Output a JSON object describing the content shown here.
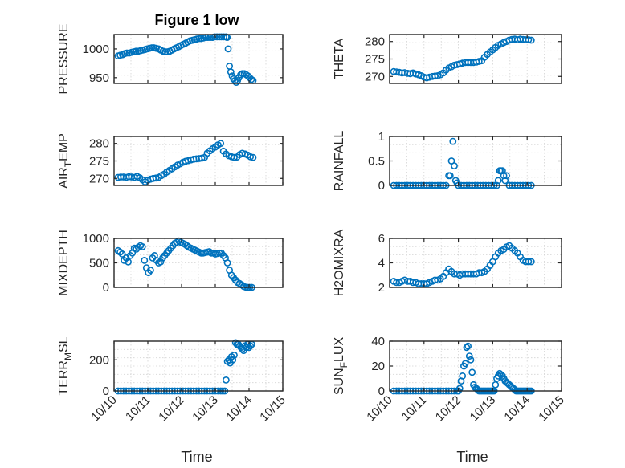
{
  "figure": {
    "title": "Figure 1 low",
    "x_label": "Time"
  },
  "colors": {
    "marker": "#0072BD",
    "axes": "#262626",
    "grid": "#d3d3d3"
  },
  "chart_data": [
    {
      "id": "pressure",
      "type": "scatter",
      "title": "Figure 1 low",
      "xlabel": "",
      "ylabel": [
        "PRESSURE"
      ],
      "marker": "circle-open",
      "xlim": [
        0,
        5
      ],
      "xticks": [
        0,
        1,
        2,
        3,
        4,
        5
      ],
      "xticklabels": [
        "10/10",
        "10/11",
        "10/12",
        "10/13",
        "10/14",
        "10/15"
      ],
      "show_xticklabels": false,
      "ylim": [
        940,
        1025
      ],
      "yticks": [
        950,
        1000
      ],
      "yticklabels": [
        "950",
        "1000"
      ],
      "x": [
        0.12,
        0.18,
        0.25,
        0.32,
        0.38,
        0.45,
        0.52,
        0.58,
        0.65,
        0.72,
        0.78,
        0.85,
        0.92,
        0.98,
        1.05,
        1.12,
        1.18,
        1.25,
        1.32,
        1.38,
        1.45,
        1.52,
        1.58,
        1.65,
        1.72,
        1.78,
        1.85,
        1.92,
        1.98,
        2.05,
        2.12,
        2.18,
        2.25,
        2.32,
        2.38,
        2.45,
        2.52,
        2.58,
        2.65,
        2.72,
        2.78,
        2.85,
        2.92,
        2.98,
        3.05,
        3.12,
        3.18,
        3.25,
        3.32,
        3.35,
        3.38,
        3.42,
        3.46,
        3.5,
        3.54,
        3.58,
        3.62,
        3.66,
        3.7,
        3.75,
        3.8,
        3.86,
        3.92,
        3.97,
        4.02,
        4.07,
        4.12
      ],
      "y": [
        988,
        989,
        990,
        992,
        993,
        993,
        994,
        995,
        996,
        996,
        997,
        998,
        999,
        1000,
        1001,
        1002,
        1002,
        1001,
        1000,
        998,
        996,
        995,
        995,
        996,
        998,
        1000,
        1002,
        1004,
        1006,
        1008,
        1010,
        1012,
        1014,
        1015,
        1016,
        1017,
        1018,
        1018,
        1019,
        1020,
        1020,
        1020,
        1020,
        1021,
        1021,
        1021,
        1021,
        1021,
        1021,
        1020,
        1000,
        970,
        960,
        953,
        948,
        945,
        942,
        945,
        950,
        955,
        957,
        957,
        955,
        953,
        950,
        947,
        945
      ]
    },
    {
      "id": "theta",
      "type": "scatter",
      "xlabel": "",
      "ylabel": [
        "THETA"
      ],
      "marker": "circle-open",
      "xlim": [
        0,
        5
      ],
      "xticks": [
        0,
        1,
        2,
        3,
        4,
        5
      ],
      "xticklabels": [
        "10/10",
        "10/11",
        "10/12",
        "10/13",
        "10/14",
        "10/15"
      ],
      "show_xticklabels": false,
      "ylim": [
        268,
        282
      ],
      "yticks": [
        270,
        275,
        280
      ],
      "yticklabels": [
        "270",
        "275",
        "280"
      ],
      "x": [
        0.12,
        0.2,
        0.28,
        0.36,
        0.44,
        0.52,
        0.6,
        0.68,
        0.76,
        0.84,
        0.92,
        1.0,
        1.08,
        1.16,
        1.24,
        1.32,
        1.4,
        1.48,
        1.56,
        1.64,
        1.72,
        1.8,
        1.88,
        1.96,
        2.04,
        2.12,
        2.2,
        2.28,
        2.36,
        2.44,
        2.52,
        2.6,
        2.68,
        2.76,
        2.84,
        2.92,
        3.0,
        3.08,
        3.16,
        3.24,
        3.32,
        3.4,
        3.48,
        3.56,
        3.64,
        3.72,
        3.8,
        3.88,
        3.96,
        4.04,
        4.12
      ],
      "y": [
        271.4,
        271.3,
        271.2,
        271.0,
        271.1,
        270.9,
        270.8,
        271.0,
        270.7,
        270.5,
        270.2,
        269.8,
        269.6,
        269.8,
        270.0,
        270.1,
        270.2,
        270.5,
        271.0,
        271.8,
        272.4,
        272.8,
        273.2,
        273.4,
        273.6,
        273.8,
        274.0,
        274.0,
        274.0,
        274.0,
        274.1,
        274.3,
        274.5,
        275.5,
        276.3,
        277.0,
        277.6,
        278.3,
        278.9,
        279.3,
        279.7,
        280.0,
        280.4,
        280.6,
        280.7,
        280.5,
        280.7,
        280.6,
        280.5,
        280.5,
        280.4
      ]
    },
    {
      "id": "air_temp",
      "type": "scatter",
      "xlabel": "",
      "ylabel": [
        "AIR",
        "T",
        "EMP"
      ],
      "marker": "circle-open",
      "xlim": [
        0,
        5
      ],
      "xticks": [
        0,
        1,
        2,
        3,
        4,
        5
      ],
      "xticklabels": [
        "10/10",
        "10/11",
        "10/12",
        "10/13",
        "10/14",
        "10/15"
      ],
      "show_xticklabels": false,
      "ylim": [
        268,
        282
      ],
      "yticks": [
        270,
        275,
        280
      ],
      "yticklabels": [
        "270",
        "275",
        "280"
      ],
      "x": [
        0.12,
        0.2,
        0.28,
        0.36,
        0.44,
        0.52,
        0.6,
        0.68,
        0.76,
        0.84,
        0.92,
        1.0,
        1.08,
        1.16,
        1.24,
        1.32,
        1.4,
        1.48,
        1.56,
        1.64,
        1.72,
        1.8,
        1.88,
        1.96,
        2.04,
        2.12,
        2.2,
        2.28,
        2.36,
        2.44,
        2.52,
        2.6,
        2.68,
        2.76,
        2.84,
        2.92,
        3.0,
        3.08,
        3.16,
        3.24,
        3.32,
        3.4,
        3.48,
        3.56,
        3.64,
        3.72,
        3.8,
        3.88,
        3.96,
        4.04,
        4.12
      ],
      "y": [
        270.3,
        270.4,
        270.4,
        270.3,
        270.5,
        270.4,
        270.3,
        270.6,
        270.2,
        269.6,
        269.0,
        269.5,
        269.8,
        270.0,
        270.1,
        270.3,
        270.8,
        271.2,
        271.8,
        272.3,
        272.8,
        273.3,
        273.8,
        274.2,
        274.6,
        274.9,
        275.1,
        275.3,
        275.5,
        275.6,
        275.7,
        275.8,
        276.0,
        277.2,
        277.9,
        278.5,
        279.0,
        279.6,
        280.0,
        277.8,
        277.0,
        276.5,
        276.2,
        276.0,
        276.1,
        276.8,
        277.2,
        277.0,
        276.7,
        276.2,
        276.0
      ]
    },
    {
      "id": "rainfall",
      "type": "scatter",
      "xlabel": "",
      "ylabel": [
        "RAINFALL"
      ],
      "marker": "circle-open",
      "xlim": [
        0,
        5
      ],
      "xticks": [
        0,
        1,
        2,
        3,
        4,
        5
      ],
      "xticklabels": [
        "10/10",
        "10/11",
        "10/12",
        "10/13",
        "10/14",
        "10/15"
      ],
      "show_xticklabels": false,
      "ylim": [
        0,
        1
      ],
      "yticks": [
        0,
        0.5,
        1
      ],
      "yticklabels": [
        "0",
        "0.5",
        "1"
      ],
      "x": [
        0.12,
        0.2,
        0.28,
        0.36,
        0.44,
        0.52,
        0.6,
        0.68,
        0.76,
        0.84,
        0.92,
        1.0,
        1.08,
        1.16,
        1.24,
        1.32,
        1.4,
        1.48,
        1.56,
        1.64,
        1.72,
        1.76,
        1.8,
        1.84,
        1.88,
        1.92,
        1.96,
        2.0,
        2.08,
        2.16,
        2.24,
        2.32,
        2.4,
        2.48,
        2.56,
        2.64,
        2.72,
        2.8,
        2.88,
        2.96,
        3.04,
        3.12,
        3.16,
        3.2,
        3.24,
        3.28,
        3.32,
        3.36,
        3.4,
        3.48,
        3.56,
        3.64,
        3.72,
        3.8,
        3.88,
        3.96,
        4.04,
        4.12
      ],
      "y": [
        0,
        0,
        0,
        0,
        0,
        0,
        0,
        0,
        0,
        0,
        0,
        0,
        0,
        0,
        0,
        0,
        0,
        0,
        0,
        0,
        0.2,
        0.2,
        0.5,
        0.9,
        0.4,
        0.1,
        0.05,
        0,
        0,
        0,
        0,
        0,
        0,
        0,
        0,
        0,
        0,
        0,
        0,
        0,
        0,
        0,
        0.1,
        0.3,
        0.3,
        0.3,
        0.2,
        0.1,
        0.2,
        0,
        0,
        0,
        0,
        0,
        0,
        0,
        0,
        0
      ]
    },
    {
      "id": "mixdepth",
      "type": "scatter",
      "xlabel": "",
      "ylabel": [
        "MIXDEPTH"
      ],
      "marker": "circle-open",
      "xlim": [
        0,
        5
      ],
      "xticks": [
        0,
        1,
        2,
        3,
        4,
        5
      ],
      "xticklabels": [
        "10/10",
        "10/11",
        "10/12",
        "10/13",
        "10/14",
        "10/15"
      ],
      "show_xticklabels": false,
      "ylim": [
        0,
        1000
      ],
      "yticks": [
        0,
        500,
        1000
      ],
      "yticklabels": [
        "0",
        "500",
        "1000"
      ],
      "x": [
        0.12,
        0.18,
        0.24,
        0.3,
        0.36,
        0.42,
        0.48,
        0.54,
        0.6,
        0.66,
        0.72,
        0.78,
        0.84,
        0.9,
        0.96,
        1.02,
        1.08,
        1.14,
        1.2,
        1.26,
        1.32,
        1.38,
        1.44,
        1.5,
        1.56,
        1.62,
        1.68,
        1.74,
        1.8,
        1.86,
        1.92,
        1.98,
        2.04,
        2.1,
        2.16,
        2.22,
        2.28,
        2.34,
        2.4,
        2.46,
        2.52,
        2.58,
        2.64,
        2.7,
        2.76,
        2.82,
        2.88,
        2.94,
        3.0,
        3.06,
        3.12,
        3.18,
        3.24,
        3.3,
        3.36,
        3.42,
        3.48,
        3.54,
        3.6,
        3.66,
        3.72,
        3.78,
        3.84,
        3.9,
        3.96,
        4.02,
        4.08
      ],
      "y": [
        750,
        720,
        680,
        550,
        600,
        520,
        650,
        700,
        800,
        780,
        820,
        850,
        830,
        550,
        400,
        300,
        350,
        600,
        650,
        550,
        500,
        520,
        600,
        650,
        700,
        750,
        800,
        850,
        900,
        920,
        950,
        920,
        900,
        880,
        850,
        820,
        800,
        780,
        760,
        740,
        720,
        700,
        700,
        710,
        720,
        730,
        700,
        700,
        680,
        690,
        700,
        700,
        650,
        600,
        500,
        350,
        250,
        200,
        150,
        100,
        80,
        50,
        20,
        5,
        0,
        0,
        0
      ]
    },
    {
      "id": "h2omixra",
      "type": "scatter",
      "xlabel": "",
      "ylabel": [
        "H2OMIXRA"
      ],
      "marker": "circle-open",
      "xlim": [
        0,
        5
      ],
      "xticks": [
        0,
        1,
        2,
        3,
        4,
        5
      ],
      "xticklabels": [
        "10/10",
        "10/11",
        "10/12",
        "10/13",
        "10/14",
        "10/15"
      ],
      "show_xticklabels": false,
      "ylim": [
        2,
        6
      ],
      "yticks": [
        2,
        4,
        6
      ],
      "yticklabels": [
        "2",
        "4",
        "6"
      ],
      "x": [
        0.12,
        0.2,
        0.28,
        0.36,
        0.44,
        0.52,
        0.6,
        0.68,
        0.76,
        0.84,
        0.92,
        1.0,
        1.08,
        1.16,
        1.24,
        1.32,
        1.4,
        1.48,
        1.56,
        1.64,
        1.72,
        1.8,
        1.88,
        1.96,
        2.04,
        2.12,
        2.2,
        2.28,
        2.36,
        2.44,
        2.52,
        2.6,
        2.68,
        2.76,
        2.84,
        2.92,
        3.0,
        3.08,
        3.16,
        3.24,
        3.32,
        3.4,
        3.48,
        3.56,
        3.64,
        3.72,
        3.8,
        3.88,
        3.96,
        4.04,
        4.12
      ],
      "y": [
        2.5,
        2.4,
        2.4,
        2.5,
        2.6,
        2.5,
        2.5,
        2.4,
        2.4,
        2.3,
        2.3,
        2.3,
        2.3,
        2.4,
        2.5,
        2.6,
        2.6,
        2.7,
        2.9,
        3.2,
        3.5,
        3.3,
        3.1,
        3.1,
        3.0,
        3.1,
        3.1,
        3.1,
        3.1,
        3.1,
        3.1,
        3.2,
        3.2,
        3.3,
        3.5,
        3.8,
        4.1,
        4.5,
        4.8,
        5.0,
        5.1,
        5.3,
        5.4,
        5.2,
        5.0,
        4.8,
        4.5,
        4.2,
        4.1,
        4.1,
        4.1
      ]
    },
    {
      "id": "terr_msl",
      "type": "scatter",
      "xlabel": "Time",
      "ylabel": [
        "TERR",
        "M",
        "SL"
      ],
      "marker": "circle-open",
      "xlim": [
        0,
        5
      ],
      "xticks": [
        0,
        1,
        2,
        3,
        4,
        5
      ],
      "xticklabels": [
        "10/10",
        "10/11",
        "10/12",
        "10/13",
        "10/14",
        "10/15"
      ],
      "show_xticklabels": true,
      "ylim": [
        0,
        320
      ],
      "yticks": [
        0,
        200
      ],
      "yticklabels": [
        "0",
        "200"
      ],
      "x": [
        0.12,
        0.2,
        0.28,
        0.36,
        0.44,
        0.52,
        0.6,
        0.68,
        0.76,
        0.84,
        0.92,
        1.0,
        1.08,
        1.16,
        1.24,
        1.32,
        1.4,
        1.48,
        1.56,
        1.64,
        1.72,
        1.8,
        1.88,
        1.96,
        2.04,
        2.12,
        2.2,
        2.28,
        2.36,
        2.44,
        2.52,
        2.6,
        2.68,
        2.76,
        2.84,
        2.92,
        3.0,
        3.08,
        3.16,
        3.22,
        3.28,
        3.32,
        3.36,
        3.4,
        3.44,
        3.48,
        3.52,
        3.56,
        3.6,
        3.64,
        3.68,
        3.72,
        3.76,
        3.8,
        3.84,
        3.88,
        3.92,
        3.96,
        4.0,
        4.04,
        4.08
      ],
      "y": [
        0,
        0,
        0,
        0,
        0,
        0,
        0,
        0,
        0,
        0,
        0,
        0,
        0,
        0,
        0,
        0,
        0,
        0,
        0,
        0,
        0,
        0,
        0,
        0,
        0,
        0,
        0,
        0,
        0,
        0,
        0,
        0,
        0,
        0,
        0,
        0,
        0,
        0,
        0,
        0,
        0,
        70,
        190,
        200,
        180,
        220,
        200,
        230,
        310,
        300,
        300,
        290,
        280,
        270,
        260,
        290,
        280,
        300,
        280,
        290,
        300
      ]
    },
    {
      "id": "sun_flux",
      "type": "scatter",
      "xlabel": "Time",
      "ylabel": [
        "SUN",
        "F",
        "LUX"
      ],
      "marker": "circle-open",
      "xlim": [
        0,
        5
      ],
      "xticks": [
        0,
        1,
        2,
        3,
        4,
        5
      ],
      "xticklabels": [
        "10/10",
        "10/11",
        "10/12",
        "10/13",
        "10/14",
        "10/15"
      ],
      "show_xticklabels": true,
      "ylim": [
        0,
        40
      ],
      "yticks": [
        0,
        20,
        40
      ],
      "yticklabels": [
        "0",
        "20",
        "40"
      ],
      "x": [
        0.12,
        0.2,
        0.28,
        0.36,
        0.44,
        0.52,
        0.6,
        0.68,
        0.76,
        0.84,
        0.92,
        1.0,
        1.08,
        1.16,
        1.24,
        1.32,
        1.4,
        1.48,
        1.56,
        1.64,
        1.72,
        1.8,
        1.88,
        1.96,
        2.0,
        2.04,
        2.08,
        2.12,
        2.16,
        2.2,
        2.24,
        2.28,
        2.32,
        2.36,
        2.4,
        2.44,
        2.48,
        2.52,
        2.56,
        2.6,
        2.64,
        2.68,
        2.72,
        2.76,
        2.8,
        2.84,
        2.88,
        2.92,
        2.96,
        3.0,
        3.04,
        3.08,
        3.12,
        3.16,
        3.2,
        3.24,
        3.28,
        3.32,
        3.36,
        3.4,
        3.44,
        3.48,
        3.52,
        3.56,
        3.6,
        3.64,
        3.68,
        3.72,
        3.76,
        3.8,
        3.84,
        3.88,
        3.92,
        3.96,
        4.0,
        4.04,
        4.08,
        4.12
      ],
      "y": [
        0,
        0,
        0,
        0,
        0,
        0,
        0,
        0,
        0,
        0,
        0,
        0,
        0,
        0,
        0,
        0,
        0,
        0,
        0,
        0,
        0,
        0,
        0,
        0,
        0,
        2,
        8,
        12,
        20,
        22,
        35,
        36,
        28,
        25,
        15,
        5,
        3,
        2,
        1,
        0,
        0,
        0,
        0,
        0,
        0,
        0,
        0,
        0,
        0,
        0,
        0,
        5,
        10,
        12,
        14,
        13,
        12,
        10,
        8,
        7,
        6,
        5,
        4,
        3,
        2,
        1,
        0,
        0,
        0,
        0,
        0,
        0,
        0,
        0,
        0,
        0,
        0,
        0
      ]
    }
  ]
}
